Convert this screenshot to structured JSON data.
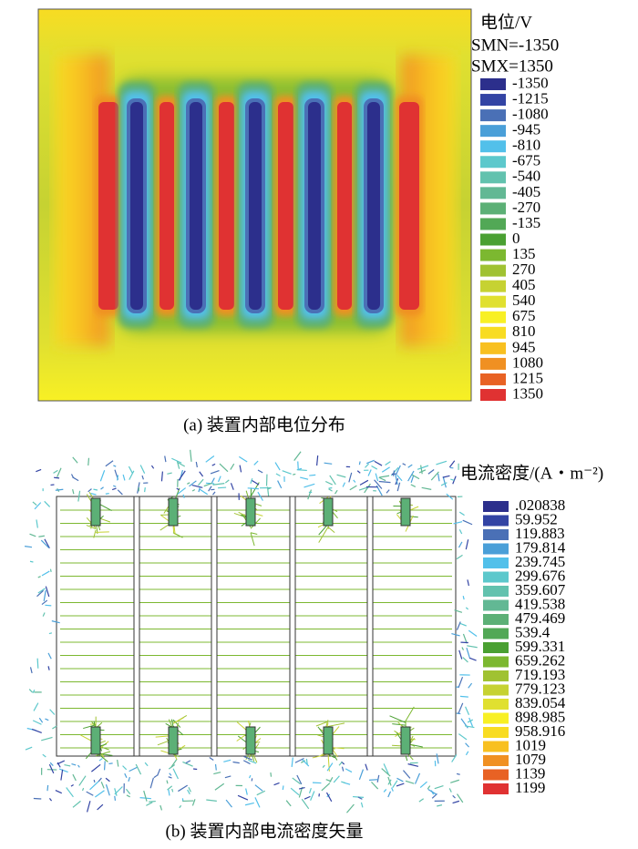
{
  "figure_a": {
    "caption": "(a) 装置内部电位分布",
    "legend": {
      "title": "电位/V",
      "min_label": "SMN=-1350",
      "max_label": "SMX=1350",
      "entries": [
        {
          "label": "-1350",
          "color": "#2c2f8c"
        },
        {
          "label": "-1215",
          "color": "#3344a4"
        },
        {
          "label": "-1080",
          "color": "#4a70b6"
        },
        {
          "label": "-945",
          "color": "#4a9fd8"
        },
        {
          "label": "-810",
          "color": "#52c0ea"
        },
        {
          "label": "-675",
          "color": "#5cc8cc"
        },
        {
          "label": "-540",
          "color": "#62c2ae"
        },
        {
          "label": "-405",
          "color": "#62b894"
        },
        {
          "label": "-270",
          "color": "#5cb076"
        },
        {
          "label": "-135",
          "color": "#52a856"
        },
        {
          "label": "0",
          "color": "#4aa032"
        },
        {
          "label": "135",
          "color": "#7cb830"
        },
        {
          "label": "270",
          "color": "#a0c232"
        },
        {
          "label": "405",
          "color": "#c6d232"
        },
        {
          "label": "540",
          "color": "#e0e030"
        },
        {
          "label": "675",
          "color": "#f8f024"
        },
        {
          "label": "810",
          "color": "#f8dc22"
        },
        {
          "label": "945",
          "color": "#f8c020"
        },
        {
          "label": "1080",
          "color": "#f09022"
        },
        {
          "label": "1215",
          "color": "#e86224"
        },
        {
          "label": "1350",
          "color": "#e03232"
        }
      ]
    }
  },
  "figure_b": {
    "caption": "(b) 装置内部电流密度矢量",
    "legend": {
      "title": "电流密度/(A・m⁻²)",
      "entries": [
        {
          "label": ".020838",
          "color": "#2c2f8c"
        },
        {
          "label": "59.952",
          "color": "#3344a4"
        },
        {
          "label": "119.883",
          "color": "#4a70b6"
        },
        {
          "label": "179.814",
          "color": "#4a9fd8"
        },
        {
          "label": "239.745",
          "color": "#52c0ea"
        },
        {
          "label": "299.676",
          "color": "#5cc8cc"
        },
        {
          "label": "359.607",
          "color": "#62c2ae"
        },
        {
          "label": "419.538",
          "color": "#62b894"
        },
        {
          "label": "479.469",
          "color": "#5cb076"
        },
        {
          "label": "539.4",
          "color": "#52a856"
        },
        {
          "label": "599.331",
          "color": "#4aa032"
        },
        {
          "label": "659.262",
          "color": "#7cb830"
        },
        {
          "label": "719.193",
          "color": "#a0c232"
        },
        {
          "label": "779.123",
          "color": "#c6d232"
        },
        {
          "label": "839.054",
          "color": "#e0e030"
        },
        {
          "label": "898.985",
          "color": "#f8f024"
        },
        {
          "label": "958.916",
          "color": "#f8dc22"
        },
        {
          "label": "1019",
          "color": "#f8c020"
        },
        {
          "label": "1079",
          "color": "#f09022"
        },
        {
          "label": "1139",
          "color": "#e86224"
        },
        {
          "label": "1199",
          "color": "#e03232"
        }
      ]
    }
  }
}
